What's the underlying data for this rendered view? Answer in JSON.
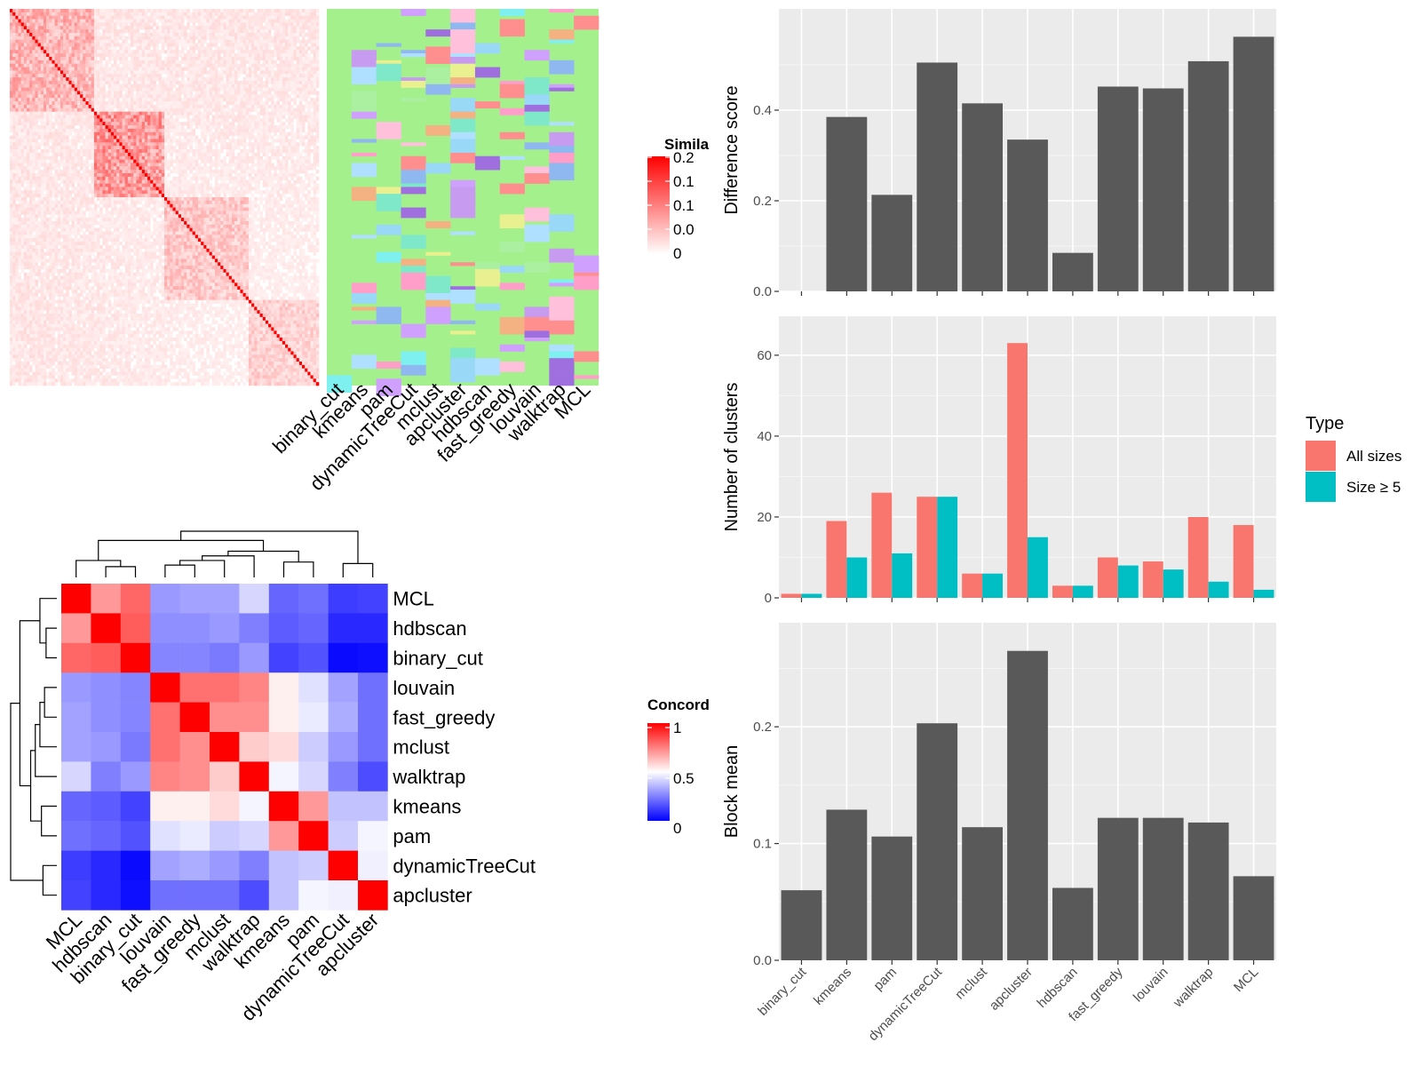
{
  "methods_order": [
    "binary_cut",
    "kmeans",
    "pam",
    "dynamicTreeCut",
    "mclust",
    "apcluster",
    "hdbscan",
    "fast_greedy",
    "louvain",
    "walktrap",
    "MCL"
  ],
  "similarity_panel": {
    "legend_title": "Simila",
    "legend_ticks": [
      "0.2",
      "0.1",
      "0.1",
      "0.0",
      "0"
    ]
  },
  "concordance_panel": {
    "legend_title": "Concord",
    "legend_ticks": [
      "1",
      "0.5",
      "0"
    ],
    "order": [
      "MCL",
      "hdbscan",
      "binary_cut",
      "louvain",
      "fast_greedy",
      "mclust",
      "walktrap",
      "kmeans",
      "pam",
      "dynamicTreeCut",
      "apcluster"
    ],
    "matrix": [
      [
        1.0,
        0.7,
        0.8,
        0.3,
        0.32,
        0.32,
        0.42,
        0.2,
        0.22,
        0.12,
        0.13
      ],
      [
        0.7,
        1.0,
        0.82,
        0.28,
        0.28,
        0.3,
        0.25,
        0.18,
        0.2,
        0.08,
        0.08
      ],
      [
        0.8,
        0.82,
        1.0,
        0.26,
        0.26,
        0.24,
        0.3,
        0.13,
        0.16,
        0.02,
        0.03
      ],
      [
        0.3,
        0.28,
        0.26,
        1.0,
        0.78,
        0.78,
        0.74,
        0.53,
        0.44,
        0.32,
        0.22
      ],
      [
        0.32,
        0.28,
        0.26,
        0.78,
        1.0,
        0.72,
        0.72,
        0.53,
        0.46,
        0.34,
        0.22
      ],
      [
        0.32,
        0.3,
        0.24,
        0.78,
        0.72,
        1.0,
        0.6,
        0.57,
        0.4,
        0.3,
        0.22
      ],
      [
        0.42,
        0.25,
        0.3,
        0.74,
        0.72,
        0.6,
        1.0,
        0.48,
        0.42,
        0.25,
        0.15
      ],
      [
        0.2,
        0.18,
        0.13,
        0.53,
        0.53,
        0.57,
        0.48,
        1.0,
        0.7,
        0.38,
        0.38
      ],
      [
        0.22,
        0.2,
        0.16,
        0.44,
        0.46,
        0.4,
        0.42,
        0.7,
        1.0,
        0.4,
        0.48
      ],
      [
        0.12,
        0.08,
        0.02,
        0.32,
        0.34,
        0.3,
        0.25,
        0.38,
        0.4,
        1.0,
        0.47
      ],
      [
        0.13,
        0.08,
        0.03,
        0.22,
        0.22,
        0.22,
        0.15,
        0.38,
        0.48,
        0.47,
        1.0
      ]
    ]
  },
  "chart_data": [
    {
      "type": "bar",
      "categories": [
        "binary_cut",
        "kmeans",
        "pam",
        "dynamicTreeCut",
        "mclust",
        "apcluster",
        "hdbscan",
        "fast_greedy",
        "louvain",
        "walktrap",
        "MCL"
      ],
      "values": [
        0.0,
        0.385,
        0.213,
        0.505,
        0.415,
        0.335,
        0.085,
        0.452,
        0.448,
        0.508,
        0.562
      ],
      "ylabel": "Difference score",
      "ylim": [
        0,
        0.6
      ],
      "yticks": [
        "0.0",
        "0.2",
        "0.4"
      ],
      "grid": true
    },
    {
      "type": "bar",
      "categories": [
        "binary_cut",
        "kmeans",
        "pam",
        "dynamicTreeCut",
        "mclust",
        "apcluster",
        "hdbscan",
        "fast_greedy",
        "louvain",
        "walktrap",
        "MCL"
      ],
      "series": [
        {
          "name": "All sizes",
          "color": "#F8766D",
          "values": [
            1,
            19,
            26,
            25,
            6,
            63,
            3,
            10,
            9,
            20,
            18
          ]
        },
        {
          "name": "Size ≥ 5",
          "color": "#00BFC4",
          "values": [
            1,
            10,
            11,
            25,
            6,
            15,
            3,
            8,
            7,
            4,
            2
          ]
        }
      ],
      "ylabel": "Number of clusters",
      "ylim": [
        0,
        67
      ],
      "yticks": [
        "0",
        "20",
        "40",
        "60"
      ],
      "legend_title": "Type",
      "legend_position": "right",
      "grid": true
    },
    {
      "type": "bar",
      "categories": [
        "binary_cut",
        "kmeans",
        "pam",
        "dynamicTreeCut",
        "mclust",
        "apcluster",
        "hdbscan",
        "fast_greedy",
        "louvain",
        "walktrap",
        "MCL"
      ],
      "values": [
        0.06,
        0.129,
        0.106,
        0.203,
        0.114,
        0.265,
        0.062,
        0.122,
        0.122,
        0.118,
        0.072
      ],
      "ylabel": "Block mean",
      "ylim": [
        0,
        0.28
      ],
      "yticks": [
        "0.0",
        "0.1",
        "0.2"
      ],
      "grid": true
    }
  ]
}
